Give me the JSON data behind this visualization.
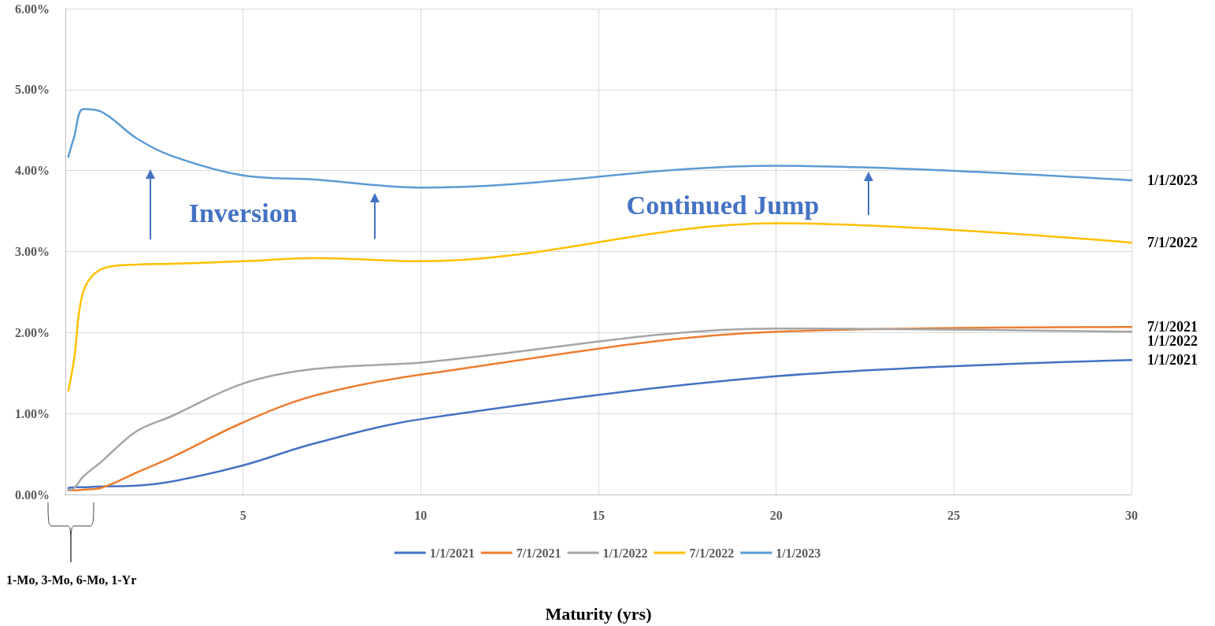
{
  "chart_data": {
    "type": "line",
    "xlabel": "Maturity (yrs)",
    "x": [
      0.0833,
      0.25,
      0.5,
      1,
      2,
      3,
      5,
      7,
      10,
      20,
      30
    ],
    "series": [
      {
        "name": "1/1/2021",
        "color": "#4472c4",
        "values": [
          0.08,
          0.09,
          0.09,
          0.1,
          0.11,
          0.16,
          0.36,
          0.63,
          0.93,
          1.46,
          1.66
        ]
      },
      {
        "name": "7/1/2021",
        "color": "#ed7d31",
        "values": [
          0.05,
          0.05,
          0.06,
          0.08,
          0.27,
          0.46,
          0.89,
          1.22,
          1.48,
          2.01,
          2.07
        ]
      },
      {
        "name": "1/1/2022",
        "color": "#a5a5a5",
        "values": [
          0.05,
          0.08,
          0.22,
          0.4,
          0.78,
          0.97,
          1.37,
          1.55,
          1.63,
          2.05,
          2.01
        ]
      },
      {
        "name": "7/1/2022",
        "color": "#ffc000",
        "values": [
          1.28,
          1.68,
          2.5,
          2.78,
          2.84,
          2.85,
          2.88,
          2.92,
          2.88,
          3.35,
          3.11
        ]
      },
      {
        "name": "1/1/2023",
        "color": "#5b9bd5",
        "values": [
          4.17,
          4.42,
          4.76,
          4.73,
          4.4,
          4.18,
          3.94,
          3.89,
          3.79,
          4.06,
          3.88
        ]
      }
    ],
    "xlim": [
      0,
      30
    ],
    "xticks": [
      {
        "value": 0,
        "label": null
      },
      5,
      10,
      15,
      20,
      25,
      30
    ],
    "ylim": [
      0,
      6
    ],
    "yticks": [
      {
        "value": 0,
        "label": "0.00%"
      },
      {
        "value": 1,
        "label": "1.00%"
      },
      {
        "value": 2,
        "label": "2.00%"
      },
      {
        "value": 3,
        "label": "3.00%"
      },
      {
        "value": 4,
        "label": "4.00%"
      },
      {
        "value": 5,
        "label": "5.00%"
      },
      {
        "value": 6,
        "label": "6.00%"
      }
    ],
    "annotations": [
      "Inversion",
      "Continued Jump",
      "1-Mo, 3-Mo, 6-Mo, 1-Yr"
    ],
    "grid": true,
    "legend": "bottom",
    "marker": "none",
    "line_style": "solid"
  }
}
